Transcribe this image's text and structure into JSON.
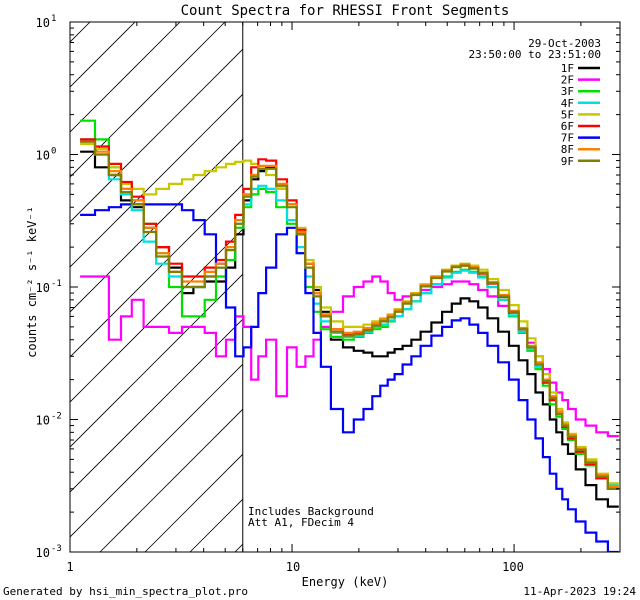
{
  "chart_data": {
    "type": "line",
    "title": "Count Spectra for RHESSI Front Segments",
    "xlabel": "Energy (keV)",
    "ylabel": "counts cm⁻² s⁻¹ keV⁻¹",
    "xscale": "log",
    "yscale": "log",
    "xlim": [
      1,
      300
    ],
    "ylim": [
      0.001,
      10
    ],
    "x_tick_labels": [
      {
        "value": 1,
        "label": "1"
      },
      {
        "value": 10,
        "label": "10"
      },
      {
        "value": 100,
        "label": "100"
      }
    ],
    "y_tick_labels": [
      {
        "exp": -3,
        "label": "10",
        "sup": "-3"
      },
      {
        "exp": -2,
        "label": "10",
        "sup": "-2"
      },
      {
        "exp": -1,
        "label": "10",
        "sup": "-1"
      },
      {
        "exp": 0,
        "label": "10",
        "sup": "0"
      },
      {
        "exp": 1,
        "label": "10",
        "sup": "1"
      }
    ],
    "date": "29-Oct-2003",
    "time_range": "23:50:00 to 23:51:00",
    "attenuator_edge_kev": 6,
    "hatched_region_kev": [
      1,
      6
    ],
    "annotations": [
      "Includes Background",
      "Att A1, FDecim 4"
    ],
    "series": [
      {
        "name": "1F",
        "color": "#000000",
        "x": [
          1.2,
          1.4,
          1.6,
          1.8,
          2,
          2.3,
          2.6,
          3,
          3.4,
          3.8,
          4.3,
          4.8,
          5.3,
          5.8,
          6.3,
          6.8,
          7.3,
          8,
          9,
          10,
          11,
          12,
          13,
          14,
          16,
          18,
          20,
          22,
          24,
          26,
          28,
          30,
          33,
          36,
          40,
          45,
          50,
          55,
          60,
          66,
          72,
          80,
          90,
          100,
          110,
          120,
          130,
          140,
          150,
          160,
          170,
          180,
          200,
          220,
          250,
          280
        ],
        "y": [
          1.05,
          0.8,
          0.7,
          0.45,
          0.4,
          0.28,
          0.2,
          0.14,
          0.09,
          0.1,
          0.11,
          0.11,
          0.14,
          0.25,
          0.45,
          0.65,
          0.75,
          0.8,
          0.55,
          0.42,
          0.25,
          0.15,
          0.095,
          0.065,
          0.04,
          0.035,
          0.033,
          0.032,
          0.03,
          0.03,
          0.032,
          0.034,
          0.036,
          0.04,
          0.046,
          0.054,
          0.065,
          0.075,
          0.082,
          0.078,
          0.07,
          0.058,
          0.046,
          0.036,
          0.028,
          0.022,
          0.016,
          0.013,
          0.01,
          0.008,
          0.0065,
          0.0055,
          0.0042,
          0.0032,
          0.0025,
          0.0022
        ]
      },
      {
        "name": "2F",
        "color": "#ff00ff",
        "x": [
          1.2,
          1.4,
          1.6,
          1.8,
          2,
          2.3,
          2.6,
          3,
          3.4,
          3.8,
          4.3,
          4.8,
          5.3,
          5.8,
          6.3,
          6.8,
          7.3,
          8,
          9,
          10,
          11,
          12,
          13,
          14,
          16,
          18,
          20,
          22,
          24,
          26,
          28,
          30,
          33,
          36,
          40,
          45,
          50,
          55,
          60,
          66,
          72,
          80,
          90,
          100,
          110,
          120,
          130,
          140,
          150,
          160,
          170,
          180,
          200,
          220,
          250,
          280
        ],
        "y": [
          0.12,
          0.12,
          0.04,
          0.06,
          0.08,
          0.05,
          0.05,
          0.045,
          0.05,
          0.05,
          0.045,
          0.03,
          0.04,
          0.06,
          0.05,
          0.02,
          0.03,
          0.04,
          0.015,
          0.035,
          0.025,
          0.03,
          0.04,
          0.05,
          0.065,
          0.085,
          0.1,
          0.11,
          0.12,
          0.11,
          0.09,
          0.08,
          0.085,
          0.09,
          0.095,
          0.1,
          0.105,
          0.11,
          0.11,
          0.105,
          0.095,
          0.085,
          0.072,
          0.06,
          0.048,
          0.038,
          0.03,
          0.024,
          0.019,
          0.016,
          0.014,
          0.012,
          0.01,
          0.009,
          0.008,
          0.0075
        ]
      },
      {
        "name": "3F",
        "color": "#00e000",
        "x": [
          1.2,
          1.4,
          1.6,
          1.8,
          2,
          2.3,
          2.6,
          3,
          3.4,
          3.8,
          4.3,
          4.8,
          5.3,
          5.8,
          6.3,
          6.8,
          7.3,
          8,
          9,
          10,
          11,
          12,
          13,
          14,
          16,
          18,
          20,
          22,
          24,
          26,
          28,
          30,
          33,
          36,
          40,
          45,
          50,
          55,
          60,
          66,
          72,
          80,
          90,
          100,
          110,
          120,
          130,
          140,
          150,
          160,
          170,
          180,
          200,
          220,
          250,
          280
        ],
        "y": [
          1.8,
          1.3,
          0.8,
          0.55,
          0.45,
          0.3,
          0.18,
          0.1,
          0.06,
          0.06,
          0.08,
          0.12,
          0.16,
          0.28,
          0.4,
          0.5,
          0.55,
          0.52,
          0.4,
          0.3,
          0.18,
          0.1,
          0.065,
          0.048,
          0.042,
          0.04,
          0.042,
          0.045,
          0.048,
          0.05,
          0.055,
          0.06,
          0.068,
          0.078,
          0.09,
          0.105,
          0.12,
          0.13,
          0.135,
          0.13,
          0.12,
          0.1,
          0.08,
          0.06,
          0.045,
          0.033,
          0.024,
          0.018,
          0.013,
          0.0105,
          0.0085,
          0.007,
          0.0055,
          0.0045,
          0.0036,
          0.003
        ]
      },
      {
        "name": "4F",
        "color": "#00e0e0",
        "x": [
          1.2,
          1.4,
          1.6,
          1.8,
          2,
          2.3,
          2.6,
          3,
          3.4,
          3.8,
          4.3,
          4.8,
          5.3,
          5.8,
          6.3,
          6.8,
          7.3,
          8,
          9,
          10,
          11,
          12,
          13,
          14,
          16,
          18,
          20,
          22,
          24,
          26,
          28,
          30,
          33,
          36,
          40,
          45,
          50,
          55,
          60,
          66,
          72,
          80,
          90,
          100,
          110,
          120,
          130,
          140,
          150,
          160,
          170,
          180,
          200,
          220,
          250,
          280
        ],
        "y": [
          1.3,
          1.0,
          0.65,
          0.5,
          0.38,
          0.22,
          0.15,
          0.12,
          0.1,
          0.1,
          0.12,
          0.14,
          0.2,
          0.3,
          0.42,
          0.55,
          0.58,
          0.55,
          0.45,
          0.32,
          0.2,
          0.12,
          0.075,
          0.055,
          0.045,
          0.042,
          0.043,
          0.046,
          0.05,
          0.052,
          0.056,
          0.06,
          0.068,
          0.078,
          0.09,
          0.105,
          0.118,
          0.128,
          0.133,
          0.128,
          0.118,
          0.1,
          0.08,
          0.061,
          0.046,
          0.034,
          0.025,
          0.019,
          0.014,
          0.011,
          0.009,
          0.0075,
          0.006,
          0.0048,
          0.0038,
          0.0032
        ]
      },
      {
        "name": "5F",
        "color": "#c8c800",
        "x": [
          1.2,
          1.4,
          1.6,
          1.8,
          2,
          2.3,
          2.6,
          3,
          3.4,
          3.8,
          4.3,
          4.8,
          5.3,
          5.8,
          6.3,
          6.8,
          7.3,
          8,
          9,
          10,
          11,
          12,
          13,
          14,
          16,
          18,
          20,
          22,
          24,
          26,
          28,
          30,
          33,
          36,
          40,
          45,
          50,
          55,
          60,
          66,
          72,
          80,
          90,
          100,
          110,
          120,
          130,
          140,
          150,
          160,
          170,
          180,
          200,
          220,
          250,
          280
        ],
        "y": [
          1.2,
          1.1,
          0.8,
          0.6,
          0.55,
          0.5,
          0.55,
          0.6,
          0.65,
          0.7,
          0.75,
          0.8,
          0.85,
          0.88,
          0.9,
          0.85,
          0.78,
          0.7,
          0.55,
          0.42,
          0.28,
          0.16,
          0.1,
          0.07,
          0.055,
          0.05,
          0.05,
          0.052,
          0.055,
          0.058,
          0.062,
          0.068,
          0.078,
          0.09,
          0.105,
          0.12,
          0.135,
          0.145,
          0.15,
          0.145,
          0.135,
          0.115,
          0.095,
          0.073,
          0.055,
          0.041,
          0.03,
          0.022,
          0.016,
          0.012,
          0.0095,
          0.0078,
          0.0062,
          0.005,
          0.0039,
          0.0033
        ]
      },
      {
        "name": "6F",
        "color": "#ff0000",
        "x": [
          1.2,
          1.4,
          1.6,
          1.8,
          2,
          2.3,
          2.6,
          3,
          3.4,
          3.8,
          4.3,
          4.8,
          5.3,
          5.8,
          6.3,
          6.8,
          7.3,
          8,
          9,
          10,
          11,
          12,
          13,
          14,
          16,
          18,
          20,
          22,
          24,
          26,
          28,
          30,
          33,
          36,
          40,
          45,
          50,
          55,
          60,
          66,
          72,
          80,
          90,
          100,
          110,
          120,
          130,
          140,
          150,
          160,
          170,
          180,
          200,
          220,
          250,
          280
        ],
        "y": [
          1.3,
          1.15,
          0.85,
          0.62,
          0.48,
          0.3,
          0.2,
          0.15,
          0.12,
          0.12,
          0.14,
          0.16,
          0.22,
          0.35,
          0.55,
          0.8,
          0.92,
          0.9,
          0.65,
          0.45,
          0.27,
          0.15,
          0.09,
          0.062,
          0.048,
          0.044,
          0.045,
          0.048,
          0.052,
          0.056,
          0.06,
          0.066,
          0.076,
          0.088,
          0.102,
          0.118,
          0.132,
          0.142,
          0.145,
          0.138,
          0.126,
          0.106,
          0.084,
          0.064,
          0.048,
          0.035,
          0.026,
          0.019,
          0.014,
          0.011,
          0.0088,
          0.0072,
          0.0057,
          0.0046,
          0.0036,
          0.003
        ]
      },
      {
        "name": "7F",
        "color": "#0000ff",
        "x": [
          1.2,
          1.4,
          1.6,
          1.8,
          2,
          2.3,
          2.6,
          3,
          3.4,
          3.8,
          4.3,
          4.8,
          5.3,
          5.8,
          6.3,
          6.8,
          7.3,
          8,
          9,
          10,
          11,
          12,
          13,
          14,
          16,
          18,
          20,
          22,
          24,
          26,
          28,
          30,
          33,
          36,
          40,
          45,
          50,
          55,
          60,
          66,
          72,
          80,
          90,
          100,
          110,
          120,
          130,
          140,
          150,
          160,
          170,
          180,
          200,
          220,
          250,
          280
        ],
        "y": [
          0.35,
          0.38,
          0.4,
          0.42,
          0.42,
          0.42,
          0.42,
          0.42,
          0.38,
          0.32,
          0.25,
          0.15,
          0.07,
          0.03,
          0.035,
          0.05,
          0.09,
          0.14,
          0.25,
          0.28,
          0.18,
          0.09,
          0.045,
          0.025,
          0.012,
          0.008,
          0.01,
          0.012,
          0.015,
          0.018,
          0.02,
          0.022,
          0.026,
          0.03,
          0.036,
          0.043,
          0.05,
          0.056,
          0.058,
          0.052,
          0.045,
          0.036,
          0.027,
          0.02,
          0.014,
          0.01,
          0.0072,
          0.0052,
          0.0039,
          0.003,
          0.0025,
          0.0021,
          0.0017,
          0.0014,
          0.0012,
          0.001
        ]
      },
      {
        "name": "8F",
        "color": "#ff8000",
        "x": [
          1.2,
          1.4,
          1.6,
          1.8,
          2,
          2.3,
          2.6,
          3,
          3.4,
          3.8,
          4.3,
          4.8,
          5.3,
          5.8,
          6.3,
          6.8,
          7.3,
          8,
          9,
          10,
          11,
          12,
          13,
          14,
          16,
          18,
          20,
          22,
          24,
          26,
          28,
          30,
          33,
          36,
          40,
          45,
          50,
          55,
          60,
          66,
          72,
          80,
          90,
          100,
          110,
          120,
          130,
          140,
          150,
          160,
          170,
          180,
          200,
          220,
          250,
          280
        ],
        "y": [
          1.25,
          1.05,
          0.75,
          0.55,
          0.45,
          0.28,
          0.18,
          0.13,
          0.11,
          0.11,
          0.13,
          0.15,
          0.2,
          0.32,
          0.5,
          0.7,
          0.82,
          0.82,
          0.6,
          0.42,
          0.26,
          0.15,
          0.09,
          0.062,
          0.048,
          0.045,
          0.046,
          0.049,
          0.053,
          0.057,
          0.061,
          0.067,
          0.077,
          0.089,
          0.103,
          0.12,
          0.134,
          0.144,
          0.148,
          0.141,
          0.129,
          0.109,
          0.087,
          0.066,
          0.049,
          0.036,
          0.027,
          0.02,
          0.015,
          0.0115,
          0.0092,
          0.0076,
          0.006,
          0.0048,
          0.0038,
          0.0031
        ]
      },
      {
        "name": "9F",
        "color": "#808000",
        "x": [
          1.2,
          1.4,
          1.6,
          1.8,
          2,
          2.3,
          2.6,
          3,
          3.4,
          3.8,
          4.3,
          4.8,
          5.3,
          5.8,
          6.3,
          6.8,
          7.3,
          8,
          9,
          10,
          11,
          12,
          13,
          14,
          16,
          18,
          20,
          22,
          24,
          26,
          28,
          30,
          33,
          36,
          40,
          45,
          50,
          55,
          60,
          66,
          72,
          80,
          90,
          100,
          110,
          120,
          130,
          140,
          150,
          160,
          170,
          180,
          200,
          220,
          250,
          280
        ],
        "y": [
          1.25,
          1.0,
          0.7,
          0.52,
          0.42,
          0.26,
          0.17,
          0.13,
          0.1,
          0.1,
          0.12,
          0.14,
          0.19,
          0.3,
          0.48,
          0.68,
          0.78,
          0.78,
          0.58,
          0.4,
          0.25,
          0.14,
          0.085,
          0.06,
          0.046,
          0.043,
          0.044,
          0.047,
          0.051,
          0.055,
          0.059,
          0.065,
          0.075,
          0.087,
          0.101,
          0.117,
          0.131,
          0.141,
          0.145,
          0.139,
          0.127,
          0.107,
          0.085,
          0.065,
          0.048,
          0.035,
          0.026,
          0.0195,
          0.0145,
          0.011,
          0.009,
          0.0074,
          0.0059,
          0.0047,
          0.0037,
          0.003
        ]
      }
    ]
  },
  "footer": {
    "generated_by": "Generated by hsi_min_spectra_plot.pro",
    "timestamp": "11-Apr-2023 19:24"
  }
}
